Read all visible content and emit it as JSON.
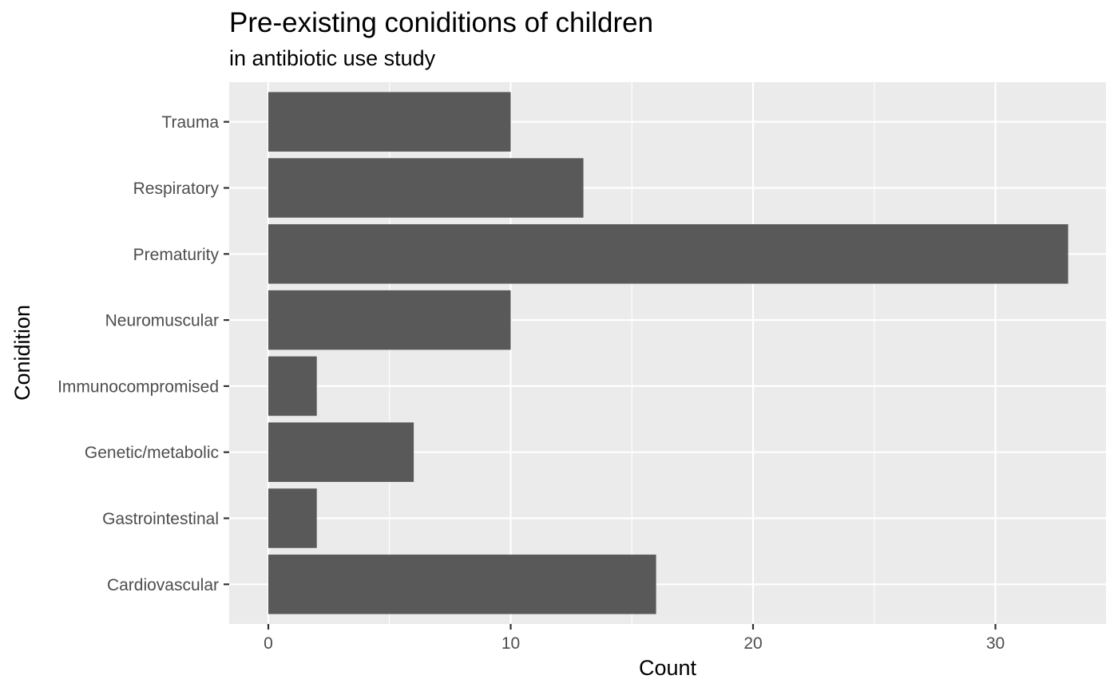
{
  "chart_data": {
    "type": "bar",
    "orientation": "horizontal",
    "title": "Pre-existing coniditions of children",
    "subtitle": "in antibiotic use study",
    "xlabel": "Count",
    "ylabel": "Conidition",
    "categories": [
      "Cardiovascular",
      "Gastrointestinal",
      "Genetic/metabolic",
      "Immunocompromised",
      "Neuromuscular",
      "Prematurity",
      "Respiratory",
      "Trauma"
    ],
    "values": [
      16,
      2,
      6,
      2,
      10,
      33,
      13,
      10
    ],
    "xlim": [
      0,
      34.65
    ],
    "x_ticks": [
      0,
      10,
      20,
      30
    ],
    "x_minor_ticks": [
      5,
      15,
      25
    ],
    "grid": true,
    "legend": "none",
    "colors": {
      "bar": "#595959",
      "panel_background": "#ebebeb",
      "grid_line": "#ffffff",
      "tick_text": "#4d4d4d",
      "axis_tick": "#333333"
    }
  }
}
